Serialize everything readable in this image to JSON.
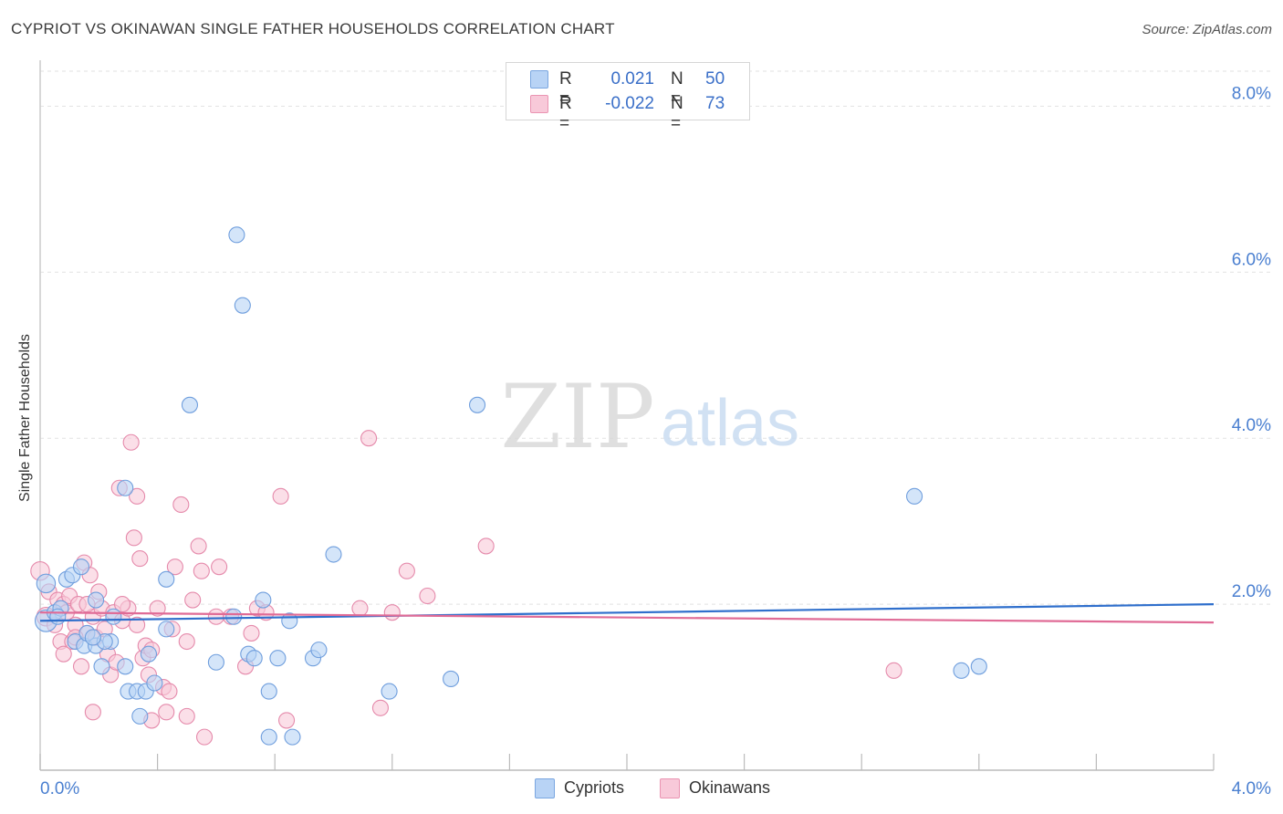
{
  "header": {
    "title": "CYPRIOT VS OKINAWAN SINGLE FATHER HOUSEHOLDS CORRELATION CHART",
    "source": "Source: ZipAtlas.com"
  },
  "watermark": {
    "zip": "ZIP",
    "atlas": "atlas"
  },
  "stats": {
    "rows": [
      {
        "r_label": "R =",
        "r_value": "0.021",
        "n_label": "N =",
        "n_value": "50"
      },
      {
        "r_label": "R =",
        "r_value": "-0.022",
        "n_label": "N =",
        "n_value": "73"
      }
    ]
  },
  "legend": {
    "items": [
      {
        "label": "Cypriots"
      },
      {
        "label": "Okinawans"
      }
    ]
  },
  "colors": {
    "blue_fill": "#b8d3f5",
    "blue_stroke": "#6f9edd",
    "blue_line": "#2f6fcc",
    "pink_fill": "#f8c9d9",
    "pink_stroke": "#e58aab",
    "pink_line": "#e06b96",
    "axis_text": "#4a7fd0",
    "grid": "#e2e2e2"
  },
  "chart_data": {
    "type": "scatter",
    "title": "CYPRIOT VS OKINAWAN SINGLE FATHER HOUSEHOLDS CORRELATION CHART",
    "xlabel": "",
    "ylabel": "Single Father Households",
    "xlim": [
      0,
      4.0
    ],
    "ylim": [
      0,
      8.0
    ],
    "x_tick_labels": {
      "min": "0.0%",
      "max": "4.0%"
    },
    "y_ticks": [
      {
        "value": 2.0,
        "label": "2.0%"
      },
      {
        "value": 4.0,
        "label": "4.0%"
      },
      {
        "value": 6.0,
        "label": "6.0%"
      },
      {
        "value": 8.0,
        "label": "8.0%"
      }
    ],
    "series": [
      {
        "name": "Cypriots",
        "color": "blue",
        "trend": {
          "x": [
            0,
            4.0
          ],
          "y": [
            1.8,
            2.0
          ]
        },
        "points": [
          {
            "x": 0.02,
            "y": 1.8,
            "s": 1.4
          },
          {
            "x": 0.02,
            "y": 2.25,
            "s": 1.2
          },
          {
            "x": 0.05,
            "y": 1.9
          },
          {
            "x": 0.07,
            "y": 1.95
          },
          {
            "x": 0.09,
            "y": 2.3
          },
          {
            "x": 0.11,
            "y": 2.35
          },
          {
            "x": 0.14,
            "y": 2.45
          },
          {
            "x": 0.12,
            "y": 1.55
          },
          {
            "x": 0.15,
            "y": 1.5
          },
          {
            "x": 0.16,
            "y": 1.65
          },
          {
            "x": 0.19,
            "y": 2.05
          },
          {
            "x": 0.19,
            "y": 1.5
          },
          {
            "x": 0.21,
            "y": 1.25
          },
          {
            "x": 0.24,
            "y": 1.55
          },
          {
            "x": 0.22,
            "y": 1.55
          },
          {
            "x": 0.25,
            "y": 1.85
          },
          {
            "x": 0.29,
            "y": 1.25
          },
          {
            "x": 0.3,
            "y": 0.95
          },
          {
            "x": 0.33,
            "y": 0.95
          },
          {
            "x": 0.36,
            "y": 0.95
          },
          {
            "x": 0.34,
            "y": 0.65
          },
          {
            "x": 0.37,
            "y": 1.4
          },
          {
            "x": 0.43,
            "y": 1.7
          },
          {
            "x": 0.43,
            "y": 2.3
          },
          {
            "x": 0.39,
            "y": 1.05
          },
          {
            "x": 0.6,
            "y": 1.3
          },
          {
            "x": 0.66,
            "y": 1.85
          },
          {
            "x": 0.71,
            "y": 1.4
          },
          {
            "x": 0.73,
            "y": 1.35
          },
          {
            "x": 0.76,
            "y": 2.05
          },
          {
            "x": 0.78,
            "y": 0.95
          },
          {
            "x": 0.81,
            "y": 1.35
          },
          {
            "x": 0.85,
            "y": 1.8
          },
          {
            "x": 0.78,
            "y": 0.4
          },
          {
            "x": 0.86,
            "y": 0.4
          },
          {
            "x": 0.93,
            "y": 1.35
          },
          {
            "x": 0.95,
            "y": 1.45
          },
          {
            "x": 1.0,
            "y": 2.6
          },
          {
            "x": 1.19,
            "y": 0.95
          },
          {
            "x": 1.4,
            "y": 1.1
          },
          {
            "x": 0.29,
            "y": 3.4
          },
          {
            "x": 0.51,
            "y": 4.4
          },
          {
            "x": 0.67,
            "y": 6.45
          },
          {
            "x": 0.69,
            "y": 5.6
          },
          {
            "x": 1.49,
            "y": 4.4
          },
          {
            "x": 2.98,
            "y": 3.3
          },
          {
            "x": 3.14,
            "y": 1.2
          },
          {
            "x": 3.2,
            "y": 1.25
          },
          {
            "x": 0.06,
            "y": 1.85
          },
          {
            "x": 0.18,
            "y": 1.6
          }
        ]
      },
      {
        "name": "Okinawans",
        "color": "pink",
        "trend": {
          "x": [
            0,
            4.0
          ],
          "y": [
            1.9,
            1.78
          ]
        },
        "points": [
          {
            "x": 0.0,
            "y": 2.4,
            "s": 1.2
          },
          {
            "x": 0.02,
            "y": 1.85,
            "s": 1.2
          },
          {
            "x": 0.03,
            "y": 2.15
          },
          {
            "x": 0.05,
            "y": 1.75
          },
          {
            "x": 0.06,
            "y": 2.05
          },
          {
            "x": 0.07,
            "y": 1.55
          },
          {
            "x": 0.08,
            "y": 2.0
          },
          {
            "x": 0.09,
            "y": 1.9
          },
          {
            "x": 0.1,
            "y": 2.1
          },
          {
            "x": 0.11,
            "y": 1.55
          },
          {
            "x": 0.12,
            "y": 1.75
          },
          {
            "x": 0.13,
            "y": 2.0
          },
          {
            "x": 0.14,
            "y": 1.25
          },
          {
            "x": 0.15,
            "y": 2.5
          },
          {
            "x": 0.16,
            "y": 1.65
          },
          {
            "x": 0.17,
            "y": 2.35
          },
          {
            "x": 0.18,
            "y": 1.85
          },
          {
            "x": 0.19,
            "y": 1.6
          },
          {
            "x": 0.2,
            "y": 2.15
          },
          {
            "x": 0.21,
            "y": 1.95
          },
          {
            "x": 0.22,
            "y": 1.7
          },
          {
            "x": 0.23,
            "y": 1.4
          },
          {
            "x": 0.24,
            "y": 1.15
          },
          {
            "x": 0.25,
            "y": 1.9
          },
          {
            "x": 0.26,
            "y": 1.3
          },
          {
            "x": 0.27,
            "y": 3.4
          },
          {
            "x": 0.28,
            "y": 1.8
          },
          {
            "x": 0.3,
            "y": 1.95
          },
          {
            "x": 0.31,
            "y": 3.95
          },
          {
            "x": 0.32,
            "y": 2.8
          },
          {
            "x": 0.33,
            "y": 3.3
          },
          {
            "x": 0.34,
            "y": 2.55
          },
          {
            "x": 0.35,
            "y": 1.35
          },
          {
            "x": 0.36,
            "y": 1.5
          },
          {
            "x": 0.37,
            "y": 1.15
          },
          {
            "x": 0.38,
            "y": 1.45
          },
          {
            "x": 0.4,
            "y": 1.95
          },
          {
            "x": 0.42,
            "y": 1.0
          },
          {
            "x": 0.43,
            "y": 0.7
          },
          {
            "x": 0.44,
            "y": 0.95
          },
          {
            "x": 0.45,
            "y": 1.7
          },
          {
            "x": 0.46,
            "y": 2.45
          },
          {
            "x": 0.48,
            "y": 3.2
          },
          {
            "x": 0.5,
            "y": 1.55
          },
          {
            "x": 0.52,
            "y": 2.05
          },
          {
            "x": 0.54,
            "y": 2.7
          },
          {
            "x": 0.55,
            "y": 2.4
          },
          {
            "x": 0.56,
            "y": 0.4
          },
          {
            "x": 0.6,
            "y": 1.85
          },
          {
            "x": 0.61,
            "y": 2.45
          },
          {
            "x": 0.65,
            "y": 1.85
          },
          {
            "x": 0.7,
            "y": 1.25
          },
          {
            "x": 0.72,
            "y": 1.65
          },
          {
            "x": 0.74,
            "y": 1.95
          },
          {
            "x": 0.77,
            "y": 1.9
          },
          {
            "x": 0.82,
            "y": 3.3
          },
          {
            "x": 0.84,
            "y": 0.6
          },
          {
            "x": 1.09,
            "y": 1.95
          },
          {
            "x": 1.12,
            "y": 4.0
          },
          {
            "x": 1.16,
            "y": 0.75
          },
          {
            "x": 1.2,
            "y": 1.9
          },
          {
            "x": 1.25,
            "y": 2.4
          },
          {
            "x": 1.32,
            "y": 2.1
          },
          {
            "x": 1.52,
            "y": 2.7
          },
          {
            "x": 0.12,
            "y": 1.6
          },
          {
            "x": 0.18,
            "y": 0.7
          },
          {
            "x": 0.28,
            "y": 2.0
          },
          {
            "x": 0.33,
            "y": 1.75
          },
          {
            "x": 0.38,
            "y": 0.6
          },
          {
            "x": 0.5,
            "y": 0.65
          },
          {
            "x": 2.91,
            "y": 1.2
          },
          {
            "x": 0.08,
            "y": 1.4
          },
          {
            "x": 0.16,
            "y": 2.0
          }
        ]
      }
    ]
  }
}
